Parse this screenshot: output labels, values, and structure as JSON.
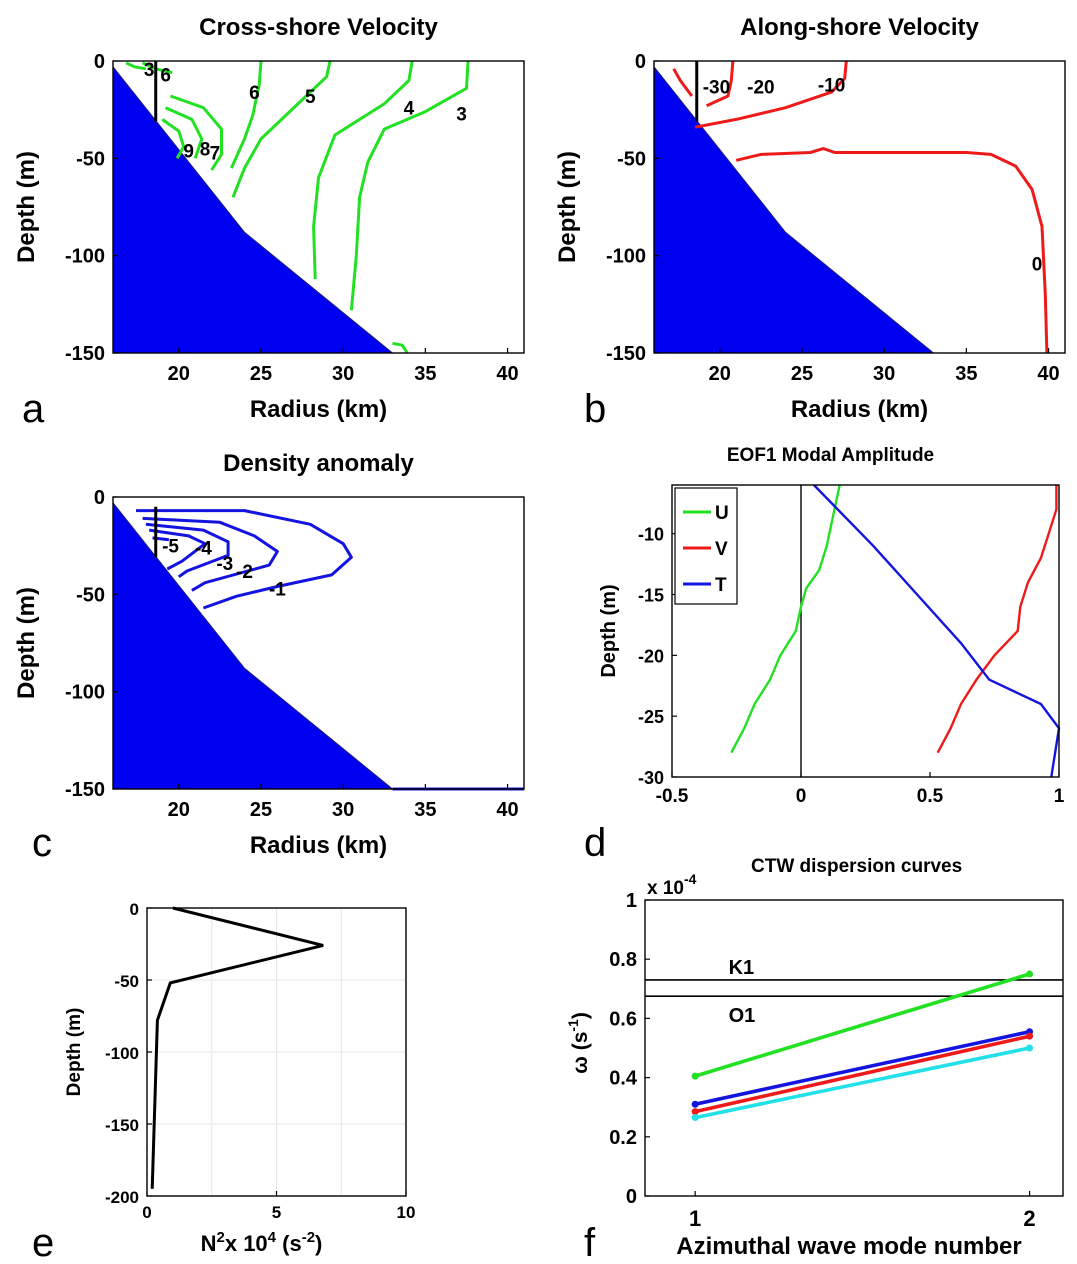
{
  "chart_data": [
    {
      "panel": "a",
      "type": "line",
      "title": "Cross-shore Velocity",
      "xlabel": "Radius (km)",
      "ylabel": "Depth (m)",
      "xlim": [
        16,
        41
      ],
      "ylim": [
        -150,
        0
      ],
      "xticks": [
        "20",
        "25",
        "30",
        "35",
        "40"
      ],
      "yticks": [
        "0",
        "-50",
        "-100",
        "-150"
      ],
      "bathymetry": [
        [
          16,
          -3
        ],
        [
          24,
          -88
        ],
        [
          33,
          -150
        ]
      ],
      "series_color": "#22e022",
      "contours": [
        {
          "label": "3",
          "label_at": [
            37.2,
            -27
          ],
          "points": [
            [
              37.6,
              0
            ],
            [
              37.5,
              -14
            ],
            [
              35,
              -26
            ],
            [
              32.5,
              -35
            ],
            [
              31.5,
              -52
            ],
            [
              31,
              -70
            ],
            [
              30.8,
              -100
            ],
            [
              30.5,
              -128
            ]
          ]
        },
        {
          "label": "4",
          "label_at": [
            34,
            -24
          ],
          "points": [
            [
              34.2,
              0
            ],
            [
              34,
              -10
            ],
            [
              32.5,
              -22
            ],
            [
              29.5,
              -38
            ],
            [
              28.5,
              -60
            ],
            [
              28.2,
              -85
            ],
            [
              28.3,
              -112
            ]
          ]
        },
        {
          "label": "5",
          "label_at": [
            28,
            -18
          ],
          "points": [
            [
              29.2,
              0
            ],
            [
              29,
              -8
            ],
            [
              27.5,
              -20
            ],
            [
              25,
              -40
            ],
            [
              24,
              -55
            ],
            [
              23.3,
              -70
            ]
          ]
        },
        {
          "label": "6",
          "label_at": [
            24.6,
            -16
          ],
          "points": [
            [
              25,
              0
            ],
            [
              24.9,
              -12
            ],
            [
              24.5,
              -28
            ],
            [
              24,
              -40
            ],
            [
              23.2,
              -55
            ]
          ]
        },
        {
          "label": "7",
          "label_at": [
            22.2,
            -47
          ],
          "points": [
            [
              19.5,
              -18
            ],
            [
              21.5,
              -24
            ],
            [
              22.6,
              -35
            ],
            [
              22.6,
              -48
            ],
            [
              22,
              -56
            ]
          ]
        },
        {
          "label": "8",
          "label_at": [
            21.6,
            -45
          ],
          "points": [
            [
              19.2,
              -24
            ],
            [
              20.8,
              -30
            ],
            [
              21.4,
              -40
            ],
            [
              21,
              -50
            ]
          ]
        },
        {
          "label": "9",
          "label_at": [
            20.6,
            -46
          ],
          "points": [
            [
              19,
              -30
            ],
            [
              20,
              -36
            ],
            [
              20.3,
              -44
            ],
            [
              19.9,
              -50
            ]
          ]
        },
        {
          "label": "6",
          "label_at": [
            19.2,
            -7
          ],
          "points": [
            [
              17.8,
              -1
            ],
            [
              18.6,
              -4
            ],
            [
              19.6,
              -6
            ]
          ]
        },
        {
          "label": "3",
          "label_at": [
            18.2,
            -4
          ],
          "points": [
            [
              16.8,
              -1
            ],
            [
              17.3,
              -3
            ],
            [
              18,
              -4
            ]
          ]
        },
        {
          "label": "",
          "label_at": null,
          "points": [
            [
              33,
              -145
            ],
            [
              33.6,
              -146
            ],
            [
              33.9,
              -150
            ]
          ]
        }
      ],
      "marker_x": 18.6,
      "marker_depth": [
        0,
        -31
      ]
    },
    {
      "panel": "b",
      "type": "line",
      "title": "Along-shore Velocity",
      "xlabel": "Radius (km)",
      "ylabel": "Depth (m)",
      "xlim": [
        16,
        41
      ],
      "ylim": [
        -150,
        0
      ],
      "xticks": [
        "20",
        "25",
        "30",
        "35",
        "40"
      ],
      "yticks": [
        "0",
        "-50",
        "-100",
        "-150"
      ],
      "bathymetry": [
        [
          16,
          -3
        ],
        [
          24,
          -88
        ],
        [
          33,
          -150
        ]
      ],
      "series_color": "#ee1a1a",
      "contours": [
        {
          "label": "-30",
          "label_at": [
            19.8,
            -13
          ],
          "points": [
            [
              17.2,
              -4
            ],
            [
              17.6,
              -10
            ],
            [
              18.3,
              -18
            ]
          ]
        },
        {
          "label": "-20",
          "label_at": [
            22.5,
            -13
          ],
          "points": [
            [
              20.8,
              0
            ],
            [
              20.7,
              -10
            ],
            [
              20.5,
              -18
            ],
            [
              19.2,
              -23
            ]
          ]
        },
        {
          "label": "-10",
          "label_at": [
            26.8,
            -12
          ],
          "points": [
            [
              27.7,
              0
            ],
            [
              27.6,
              -9
            ],
            [
              26.8,
              -16
            ],
            [
              24,
              -24
            ],
            [
              21,
              -30
            ],
            [
              18.5,
              -34
            ]
          ]
        },
        {
          "label": "0",
          "label_at": [
            39.3,
            -104
          ],
          "points": [
            [
              21,
              -51
            ],
            [
              22.5,
              -48
            ],
            [
              25.5,
              -47
            ],
            [
              26.3,
              -45
            ],
            [
              27,
              -47
            ],
            [
              35,
              -47
            ],
            [
              36.5,
              -48
            ],
            [
              38,
              -54
            ],
            [
              39,
              -66
            ],
            [
              39.6,
              -85
            ],
            [
              39.8,
              -120
            ],
            [
              39.9,
              -150
            ]
          ]
        }
      ],
      "marker_x": 18.6,
      "marker_depth": [
        0,
        -31
      ]
    },
    {
      "panel": "c",
      "type": "line",
      "title": "Density anomaly",
      "xlabel": "Radius (km)",
      "ylabel": "Depth (m)",
      "xlim": [
        16,
        41
      ],
      "ylim": [
        -150,
        0
      ],
      "xticks": [
        "20",
        "25",
        "30",
        "35",
        "40"
      ],
      "yticks": [
        "0",
        "-50",
        "-100",
        "-150"
      ],
      "bathymetry": [
        [
          16,
          -3
        ],
        [
          24,
          -88
        ],
        [
          33,
          -150
        ]
      ],
      "series_color": "#1414e0",
      "contours": [
        {
          "label": "-1",
          "label_at": [
            26,
            -47
          ],
          "points": [
            [
              17.4,
              -7
            ],
            [
              24,
              -7
            ],
            [
              28,
              -14
            ],
            [
              30,
              -24
            ],
            [
              30.5,
              -31
            ],
            [
              29.3,
              -40
            ],
            [
              26,
              -46
            ],
            [
              23.5,
              -51
            ],
            [
              21.5,
              -57
            ]
          ]
        },
        {
          "label": "-2",
          "label_at": [
            24,
            -38
          ],
          "points": [
            [
              17.8,
              -11
            ],
            [
              22.5,
              -13
            ],
            [
              24.6,
              -20
            ],
            [
              26,
              -28
            ],
            [
              25.5,
              -35
            ],
            [
              21.6,
              -44
            ],
            [
              20.8,
              -48
            ]
          ]
        },
        {
          "label": "-3",
          "label_at": [
            22.8,
            -34
          ],
          "points": [
            [
              18,
              -14
            ],
            [
              21.5,
              -17
            ],
            [
              23,
              -23
            ],
            [
              23,
              -30
            ],
            [
              20.5,
              -38
            ],
            [
              20,
              -41
            ]
          ]
        },
        {
          "label": "-4",
          "label_at": [
            21.5,
            -26
          ],
          "points": [
            [
              18.2,
              -17
            ],
            [
              20.6,
              -20
            ],
            [
              21.6,
              -24
            ],
            [
              20.2,
              -33
            ],
            [
              19.3,
              -37
            ]
          ]
        },
        {
          "label": "-5",
          "label_at": [
            19.5,
            -25
          ],
          "points": [
            [
              18.4,
              -21
            ],
            [
              19.4,
              -22
            ]
          ]
        },
        {
          "label": "",
          "label_at": null,
          "points": [
            [
              33,
              -150
            ],
            [
              41,
              -150
            ]
          ]
        }
      ],
      "marker_x": 18.6,
      "marker_depth": [
        -5,
        -31
      ]
    },
    {
      "panel": "d",
      "type": "line",
      "title": "EOF1 Modal Amplitude",
      "xlabel": "",
      "ylabel": "Depth (m)",
      "xlim": [
        -0.5,
        1
      ],
      "ylim": [
        -30,
        -6
      ],
      "xticks": [
        "-0.5",
        "0",
        "0.5",
        "1"
      ],
      "yticks": [
        "-10",
        "-15",
        "-20",
        "-25",
        "-30"
      ],
      "legend": "top-left",
      "series": [
        {
          "name": "U",
          "color": "#22e022",
          "points": [
            [
              0.15,
              -6
            ],
            [
              0.13,
              -8
            ],
            [
              0.1,
              -11
            ],
            [
              0.07,
              -13
            ],
            [
              0.02,
              -14.5
            ],
            [
              0,
              -16
            ],
            [
              -0.02,
              -18
            ],
            [
              -0.08,
              -20
            ],
            [
              -0.12,
              -22
            ],
            [
              -0.18,
              -24
            ],
            [
              -0.22,
              -26
            ],
            [
              -0.27,
              -28
            ]
          ]
        },
        {
          "name": "V",
          "color": "#ee1a1a",
          "points": [
            [
              0.99,
              -6
            ],
            [
              0.99,
              -8
            ],
            [
              0.96,
              -10
            ],
            [
              0.93,
              -12
            ],
            [
              0.88,
              -14
            ],
            [
              0.85,
              -16
            ],
            [
              0.84,
              -18
            ],
            [
              0.75,
              -20
            ],
            [
              0.68,
              -22
            ],
            [
              0.62,
              -24
            ],
            [
              0.58,
              -26
            ],
            [
              0.53,
              -28
            ]
          ]
        },
        {
          "name": "T",
          "color": "#1414e0",
          "points": [
            [
              0.05,
              -6
            ],
            [
              0.28,
              -11
            ],
            [
              0.45,
              -15
            ],
            [
              0.62,
              -19
            ],
            [
              0.73,
              -22
            ],
            [
              0.93,
              -24
            ],
            [
              1.0,
              -26
            ],
            [
              0.97,
              -30
            ]
          ]
        }
      ],
      "zero_line_x": 0
    },
    {
      "panel": "e",
      "type": "line",
      "title": "",
      "xlabel_main": "N",
      "xlabel_sup1": "2",
      "xlabel_mid": "x 10",
      "xlabel_sup2": "4",
      "xlabel_unit": " (s",
      "xlabel_sup3": "-2",
      "xlabel_end": ")",
      "ylabel": "Depth (m)",
      "xlim": [
        0,
        10
      ],
      "ylim": [
        -200,
        0
      ],
      "xticks": [
        "0",
        "5",
        "10"
      ],
      "yticks": [
        "0",
        "-50",
        "-100",
        "-150",
        "-200"
      ],
      "grid": true,
      "series": [
        {
          "name": "",
          "color": "#000000",
          "points": [
            [
              1,
              0
            ],
            [
              6.8,
              -26
            ],
            [
              0.9,
              -52
            ],
            [
              0.4,
              -78
            ],
            [
              0.2,
              -195
            ]
          ]
        }
      ]
    },
    {
      "panel": "f",
      "type": "line",
      "title": "CTW dispersion curves",
      "scale_label": "x 10",
      "scale_exp": "-4",
      "xlabel": "Azimuthal wave mode number",
      "ylabel_main": "ω (s",
      "ylabel_sup": "-1",
      "ylabel_end": ")",
      "xlim": [
        0.85,
        2.1
      ],
      "ylim": [
        0,
        1
      ],
      "xticks": [
        "1",
        "2"
      ],
      "yticks": [
        "0",
        "0.2",
        "0.4",
        "0.6",
        "0.8",
        "1"
      ],
      "hlines": [
        {
          "label": "K1",
          "y": 0.73
        },
        {
          "label": "O1",
          "y": 0.675
        }
      ],
      "series": [
        {
          "color": "#22e022",
          "x": [
            1,
            2
          ],
          "y": [
            0.405,
            0.75
          ]
        },
        {
          "color": "#1414e0",
          "x": [
            1,
            2
          ],
          "y": [
            0.31,
            0.555
          ]
        },
        {
          "color": "#ee1a1a",
          "x": [
            1,
            2
          ],
          "y": [
            0.285,
            0.54
          ]
        },
        {
          "color": "#22e0e8",
          "x": [
            1,
            2
          ],
          "y": [
            0.265,
            0.5
          ]
        }
      ]
    }
  ],
  "panel_letters": [
    "a",
    "b",
    "c",
    "d",
    "e",
    "f"
  ],
  "colors": {
    "bathymetry": "#0000f0",
    "axis": "#000000",
    "grid": "#e6e6e6"
  }
}
